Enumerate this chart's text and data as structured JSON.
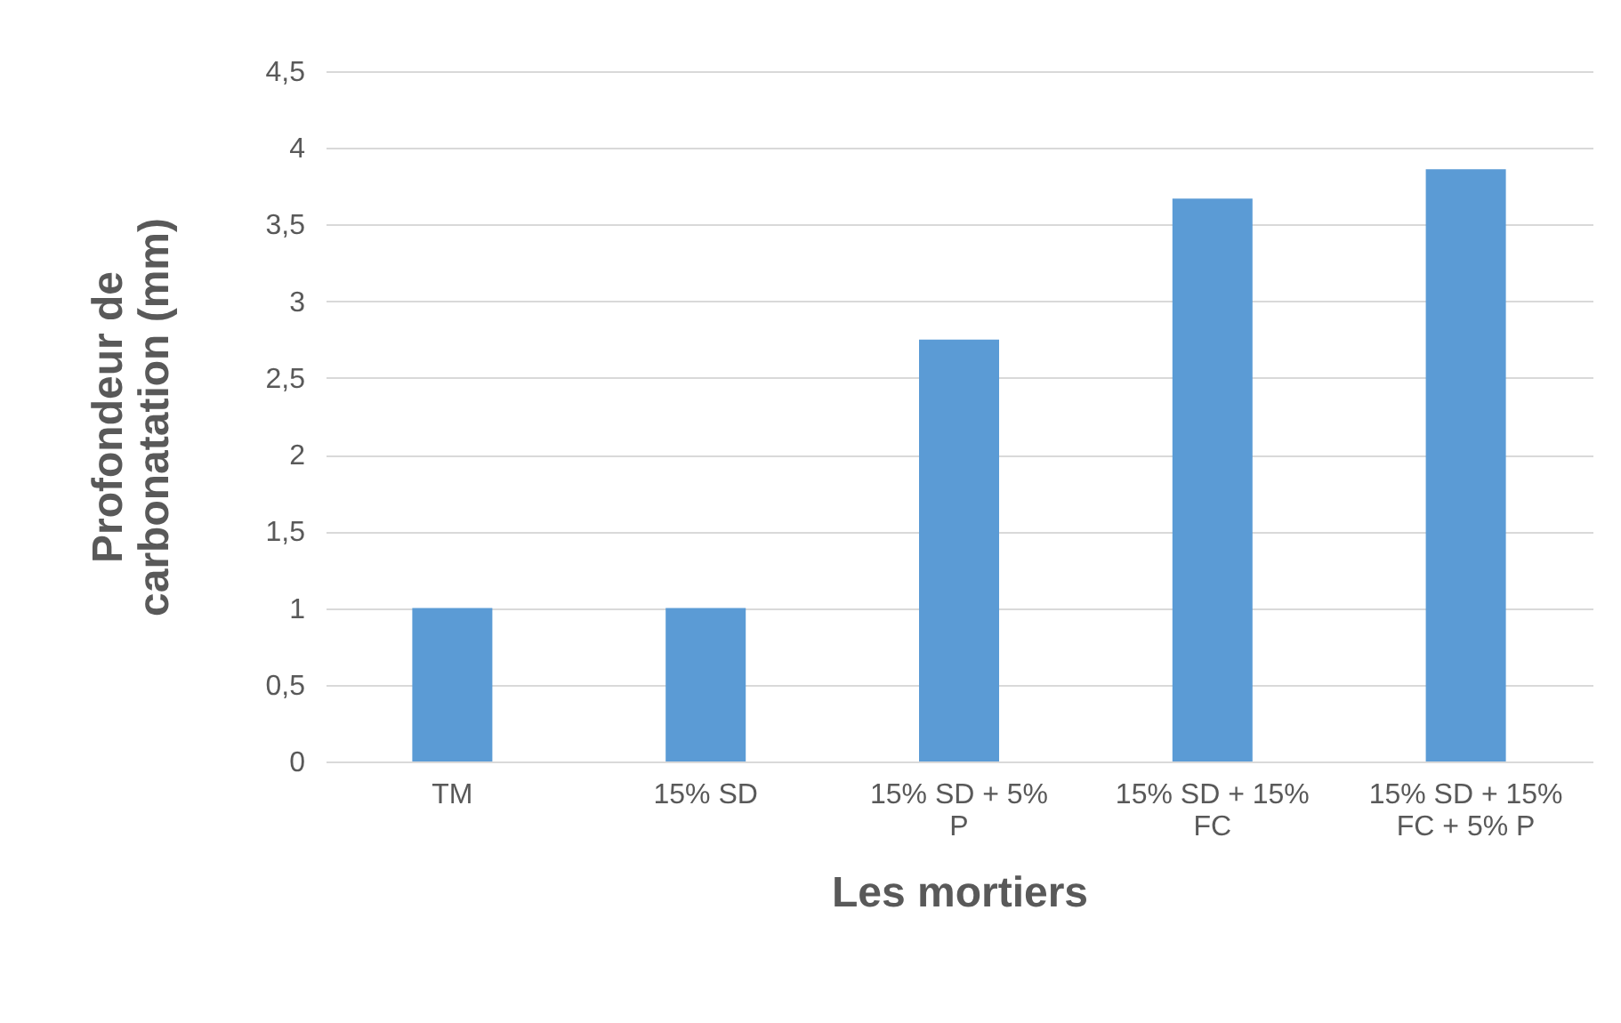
{
  "chart_data": {
    "type": "bar",
    "xlabel": "Les mortiers",
    "ylabel": "Profondeur de carbonatation (mm)",
    "categories": [
      "TM",
      "15% SD",
      "15% SD + 5% P",
      "15% SD + 15% FC",
      "15% SD + 15% FC + 5% P"
    ],
    "values": [
      1,
      1,
      2.75,
      3.67,
      3.86
    ],
    "color": "#5b9bd5",
    "ylim": [
      0,
      4.5
    ],
    "yticks": [
      0,
      {
        "value": 0.5,
        "label": "0,5"
      },
      1,
      {
        "value": 1.5,
        "label": "1,5"
      },
      2,
      {
        "value": 2.5,
        "label": "2,5"
      },
      3,
      {
        "value": 3.5,
        "label": "3,5"
      },
      4,
      {
        "value": 4.5,
        "label": "4,5"
      }
    ],
    "grid": "y"
  }
}
